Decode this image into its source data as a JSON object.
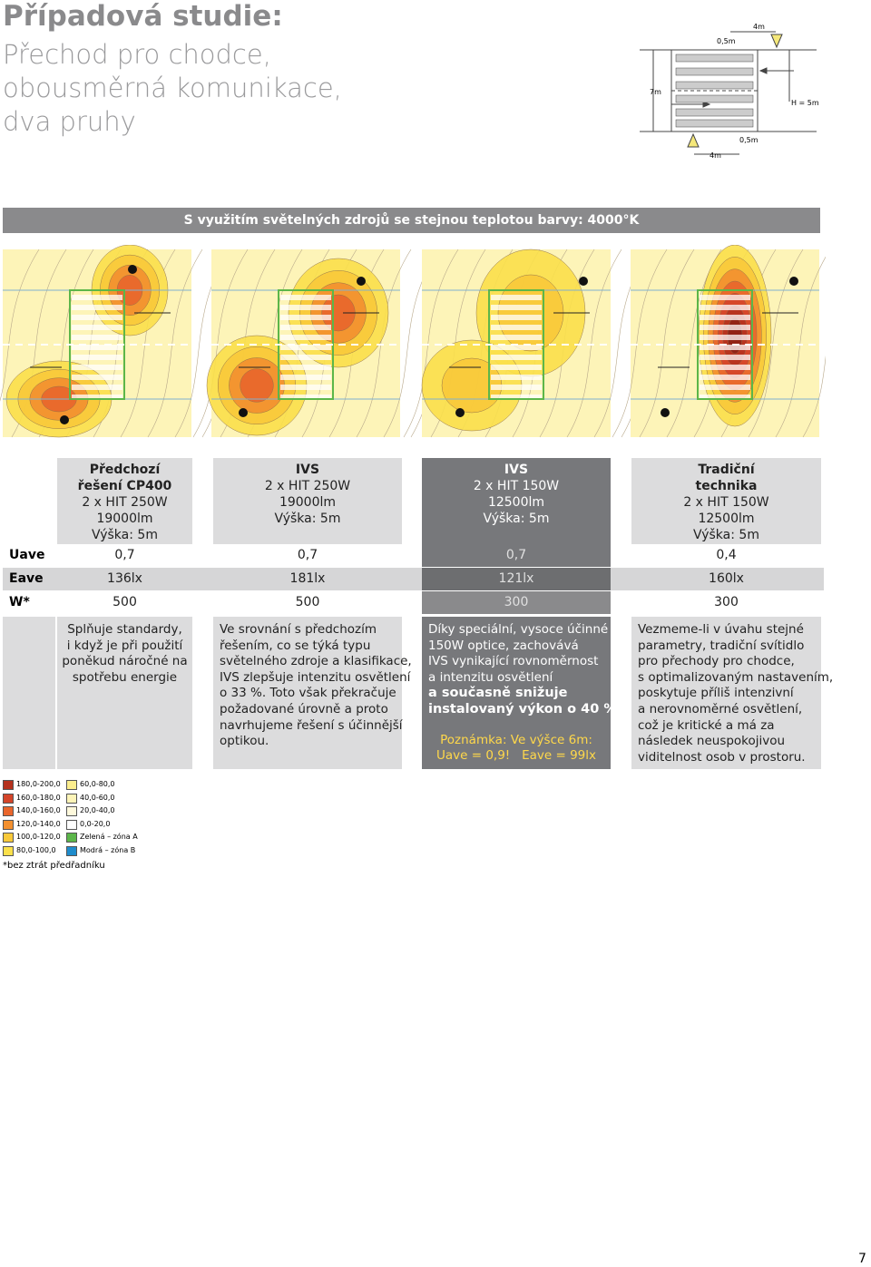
{
  "header": {
    "title": "Případová studie:",
    "subtitle_lines": [
      "Přechod pro chodce,",
      "obousměrná komunikace,",
      "dva pruhy"
    ]
  },
  "diagram": {
    "top_width": "4m",
    "top_offset": "0,5m",
    "road_width": "7m",
    "height": "H = 5m",
    "bottom_offset": "0,5m",
    "bottom_width": "4m"
  },
  "banner": "S využitím světelných zdrojů se stejnou teplotou barvy: 4000°K",
  "table": {
    "row_labels": [
      "Uave",
      "Eave",
      "W*"
    ],
    "columns": [
      {
        "name_lines": [
          "Předchozí",
          "řešení CP400"
        ],
        "spec_lines": [
          "2 x HIT 250W",
          "19000lm",
          "Výška: 5m"
        ],
        "uave": "0,7",
        "eave": "136lx",
        "w": "500",
        "description_lines": [
          "Splňuje standardy,",
          "i když je při použití",
          "poněkud náročné na",
          "spotřebu energie"
        ]
      },
      {
        "name_lines": [
          "IVS"
        ],
        "spec_lines": [
          "2 x HIT 250W",
          "19000lm",
          "Výška: 5m"
        ],
        "uave": "0,7",
        "eave": "181lx",
        "w": "500",
        "description_lines": [
          "Ve srovnání s předchozím",
          "řešením, co se týká typu",
          "světelného zdroje a klasifikace,",
          "IVS zlepšuje intenzitu osvětlení",
          "o 33 %. Toto však překračuje",
          "požadované úrovně a proto",
          "navrhujeme řešení s účinnější",
          "optikou."
        ]
      },
      {
        "name_lines": [
          "IVS"
        ],
        "spec_lines": [
          "2 x HIT 150W",
          "12500lm",
          "Výška: 5m"
        ],
        "uave": "0,7",
        "eave": "121lx",
        "w": "300",
        "description_lines": [
          "Díky speciální, vysoce účinné",
          "150W optice, zachovává",
          "IVS vynikající rovnoměrnost",
          "a intenzitu osvětlení"
        ],
        "description_bold_lines": [
          "a současně snižuje",
          "instalovaný výkon o 40 %"
        ],
        "note_lines": [
          "Poznámka: Ve výšce 6m:",
          "Uave = 0,9!   Eave = 99lx"
        ]
      },
      {
        "name_lines": [
          "Tradiční",
          "technika"
        ],
        "spec_lines": [
          "2 x HIT 150W",
          "12500lm",
          "Výška: 5m"
        ],
        "uave": "0,4",
        "eave": "160lx",
        "w": "300",
        "description_lines": [
          "Vezmeme-li v úvahu stejné",
          "parametry, tradiční svítidlo",
          "pro přechody pro chodce,",
          "s optimalizovaným nastavením,",
          "poskytuje příliš intenzivní",
          "a nerovnoměrné osvětlení,",
          "což je kritické a má za",
          "následek neuspokojivou",
          "viditelnost osob v prostoru."
        ]
      }
    ]
  },
  "legend": {
    "items": [
      {
        "label": "180,0-200,0",
        "color": "#b5321e"
      },
      {
        "label": "160,0-180,0",
        "color": "#d4452a"
      },
      {
        "label": "140,0-160,0",
        "color": "#e9662c"
      },
      {
        "label": "120,0-140,0",
        "color": "#f3902f"
      },
      {
        "label": "100,0-120,0",
        "color": "#f9c93a"
      },
      {
        "label": "80,0-100,0",
        "color": "#fbe04b"
      },
      {
        "label": "60,0-80,0",
        "color": "#fcee8e"
      },
      {
        "label": "40,0-60,0",
        "color": "#fdf4b8"
      },
      {
        "label": "20,0-40,0",
        "color": "#fef9dc"
      },
      {
        "label": "0,0-20,0",
        "color": "#ffffff"
      },
      {
        "label": "Zelená – zóna A",
        "color": "#5cb64a"
      },
      {
        "label": "Modrá – zóna B",
        "color": "#1f8ccc"
      }
    ],
    "footnote": "*bez ztrát předřadníku"
  },
  "page_number": "7"
}
